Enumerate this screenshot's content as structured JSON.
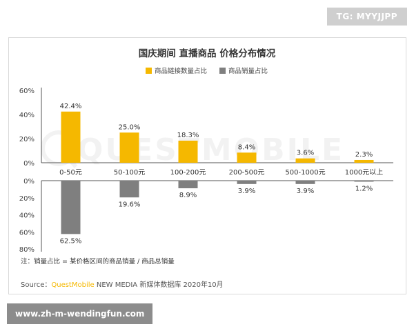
{
  "watermark_badge": "TG: MYYJJPP",
  "site_badge": "www.zh-m-wendingfun.com",
  "chart_data": {
    "type": "bar",
    "title": "国庆期间 直播商品 价格分布情况",
    "categories": [
      "0-50元",
      "50-100元",
      "100-200元",
      "200-500元",
      "500-1000元",
      "1000元以上"
    ],
    "series": [
      {
        "name": "商品链接数量占比",
        "values": [
          42.4,
          25.0,
          18.3,
          8.4,
          3.6,
          2.3
        ],
        "labels": [
          "42.4%",
          "25.0%",
          "18.3%",
          "8.4%",
          "3.6%",
          "2.3%"
        ],
        "color": "#f5b800"
      },
      {
        "name": "商品销量占比",
        "values": [
          62.5,
          19.6,
          8.9,
          3.9,
          3.9,
          1.2
        ],
        "labels": [
          "62.5%",
          "19.6%",
          "8.9%",
          "3.9%",
          "3.9%",
          "1.2%"
        ],
        "color": "#7f7f7f"
      }
    ],
    "upper_axis": {
      "range": [
        0,
        60
      ],
      "ticks": [
        "0%",
        "20%",
        "40%",
        "60%"
      ]
    },
    "lower_axis": {
      "range": [
        0,
        80
      ],
      "ticks": [
        "0%",
        "20%",
        "40%",
        "60%",
        "80%"
      ],
      "direction": "downward"
    },
    "legend_position": "top-right",
    "grid": false,
    "note": "注：销量占比 = 某价格区间的商品销量 / 商品总销量",
    "source": {
      "prefix": "Source：",
      "brand": "QuestMobile",
      "rest": " NEW MEDIA 新媒体数据库 2020年10月"
    },
    "watermark_text": "QUESTMOBILE"
  }
}
